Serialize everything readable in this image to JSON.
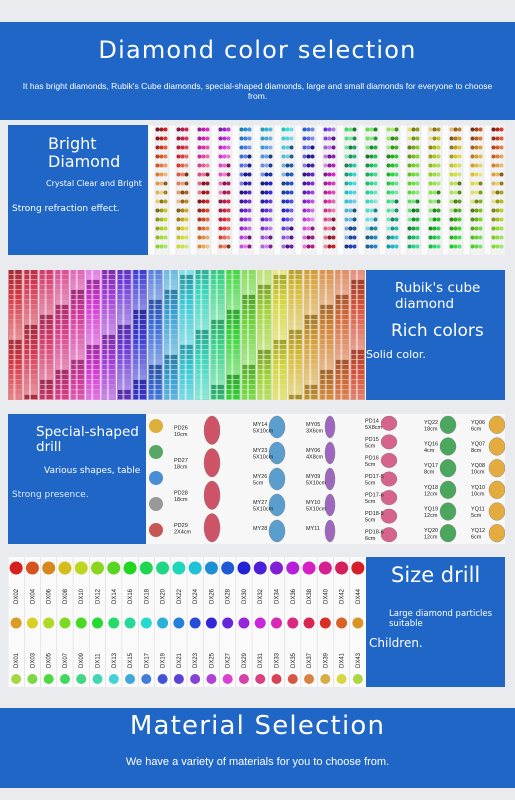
{
  "header": {
    "title": "Diamond color selection",
    "subtitle": "It has bright diamonds, Rubik's Cube diamonds, special-shaped diamonds, large and small diamonds for everyone to choose from."
  },
  "bright": {
    "title_line1": "Bright",
    "title_line2": "Diamond",
    "sub": "Crystal Clear and Bright",
    "desc": "Strong refraction effect."
  },
  "rubik": {
    "title_line1": "Rubik's cube",
    "title_line2": "diamond",
    "heading": "Rich colors",
    "desc": "Solid color."
  },
  "special": {
    "title_line1": "Special-shaped",
    "title_line2": "drill",
    "sub": "Various shapes, table",
    "desc": "Strong presence."
  },
  "special_labels": {
    "col1": [
      "PD26\n10cm",
      "PD27\n18cm",
      "PD28\n18cm",
      "PD29\n2X4cm"
    ],
    "col2": [
      "MY14\n5X10cm",
      "MY23\n5X10cm",
      "MY26\n5cm",
      "MY27\n5X10cm",
      "MY28"
    ],
    "col3": [
      "MY05\n3X6cm",
      "MY06\n4X8cm",
      "MY09\n5X10cm",
      "MY10\n5X10cm",
      "MY11"
    ],
    "col4": [
      "PD14\n5X8cm",
      "PD15\n5cm",
      "PD16\n5cm",
      "PD17-5\n5cm",
      "PD17-6\n5cm",
      "PD18-5\n5cm",
      "PD18-6\n6cm"
    ],
    "col5": [
      "YQ22\n18cm",
      "YQ16\n4cm",
      "YQ17\n8cm",
      "YQ18\n12cm",
      "YQ19\n12cm",
      "YQ20\n12cm"
    ],
    "col6": [
      "YQ06\n6cm",
      "YQ07\n8cm",
      "YQ08\n10cm",
      "YQ10\n10cm",
      "YQ11\n5cm",
      "YQ12\n6cm"
    ]
  },
  "size": {
    "title": "Size drill",
    "sub": "Large diamond particles suitable",
    "desc": "Children."
  },
  "size_codes_top": [
    "DX02",
    "DX04",
    "DX06",
    "DX08",
    "DX10",
    "DX12",
    "DX14",
    "DX16",
    "DX18",
    "DX20",
    "DX22",
    "DX24",
    "DX26",
    "DX28",
    "DX30",
    "DX32",
    "DX34",
    "DX36",
    "DX38",
    "DX40",
    "DX42",
    "DX44"
  ],
  "size_codes_bottom": [
    "DX01",
    "DX03",
    "DX05",
    "DX07",
    "DX09",
    "DX11",
    "DX13",
    "DX15",
    "DX17",
    "DX19",
    "DX21",
    "DX23",
    "DX25",
    "DX27",
    "DX29",
    "DX31",
    "DX33",
    "DX35",
    "DX37",
    "DX39",
    "DX41",
    "DX43"
  ],
  "material": {
    "title": "Material Selection",
    "sub": "We have a variety of materials for you to choose from."
  }
}
